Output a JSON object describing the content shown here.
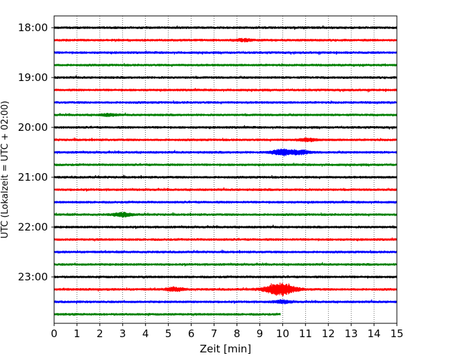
{
  "chart_data": {
    "type": "line",
    "chart_kind": "helicorder (seismogram drum plot)",
    "xlabel": "Zeit  [min]",
    "ylabel": "UTC (Lokalzeit = UTC + 02:00)",
    "xlim": [
      0,
      15
    ],
    "x_ticks": [
      "0",
      "1",
      "2",
      "3",
      "4",
      "5",
      "6",
      "7",
      "8",
      "9",
      "10",
      "11",
      "12",
      "13",
      "14",
      "15"
    ],
    "y_ticks": [
      "18:00",
      "19:00",
      "20:00",
      "21:00",
      "22:00",
      "23:00"
    ],
    "grid": "vertical dotted lines at each minute",
    "trace_colors": [
      "#000000",
      "#ff0000",
      "#0000ff",
      "#008000"
    ],
    "traces": [
      {
        "start": "18:00",
        "end_minute": 15,
        "events": []
      },
      {
        "start": "18:15",
        "end_minute": 15,
        "events": [
          {
            "minute": 8.3,
            "amplitude": 0.35
          }
        ]
      },
      {
        "start": "18:30",
        "end_minute": 15,
        "events": []
      },
      {
        "start": "18:45",
        "end_minute": 15,
        "events": []
      },
      {
        "start": "19:00",
        "end_minute": 15,
        "events": []
      },
      {
        "start": "19:15",
        "end_minute": 15,
        "events": []
      },
      {
        "start": "19:30",
        "end_minute": 15,
        "events": []
      },
      {
        "start": "19:45",
        "end_minute": 15,
        "events": [
          {
            "minute": 2.4,
            "amplitude": 0.3
          }
        ]
      },
      {
        "start": "20:00",
        "end_minute": 15,
        "events": []
      },
      {
        "start": "20:15",
        "end_minute": 15,
        "events": [
          {
            "minute": 11.1,
            "amplitude": 0.4
          }
        ]
      },
      {
        "start": "20:30",
        "end_minute": 15,
        "events": [
          {
            "minute": 10.0,
            "amplitude": 0.9
          },
          {
            "minute": 10.8,
            "amplitude": 0.55
          }
        ]
      },
      {
        "start": "20:45",
        "end_minute": 15,
        "events": []
      },
      {
        "start": "21:00",
        "end_minute": 15,
        "events": []
      },
      {
        "start": "21:15",
        "end_minute": 15,
        "events": []
      },
      {
        "start": "21:30",
        "end_minute": 15,
        "events": []
      },
      {
        "start": "21:45",
        "end_minute": 15,
        "events": [
          {
            "minute": 3.0,
            "amplitude": 0.55
          }
        ]
      },
      {
        "start": "22:00",
        "end_minute": 15,
        "events": []
      },
      {
        "start": "22:15",
        "end_minute": 15,
        "events": []
      },
      {
        "start": "22:30",
        "end_minute": 15,
        "events": []
      },
      {
        "start": "22:45",
        "end_minute": 15,
        "events": []
      },
      {
        "start": "23:00",
        "end_minute": 15,
        "events": []
      },
      {
        "start": "23:15",
        "end_minute": 15,
        "events": [
          {
            "minute": 9.9,
            "amplitude": 1.8
          },
          {
            "minute": 5.3,
            "amplitude": 0.5
          }
        ]
      },
      {
        "start": "23:30",
        "end_minute": 15,
        "events": [
          {
            "minute": 10.0,
            "amplitude": 0.4
          }
        ]
      },
      {
        "start": "23:45",
        "end_minute": 9.9,
        "events": []
      }
    ]
  }
}
